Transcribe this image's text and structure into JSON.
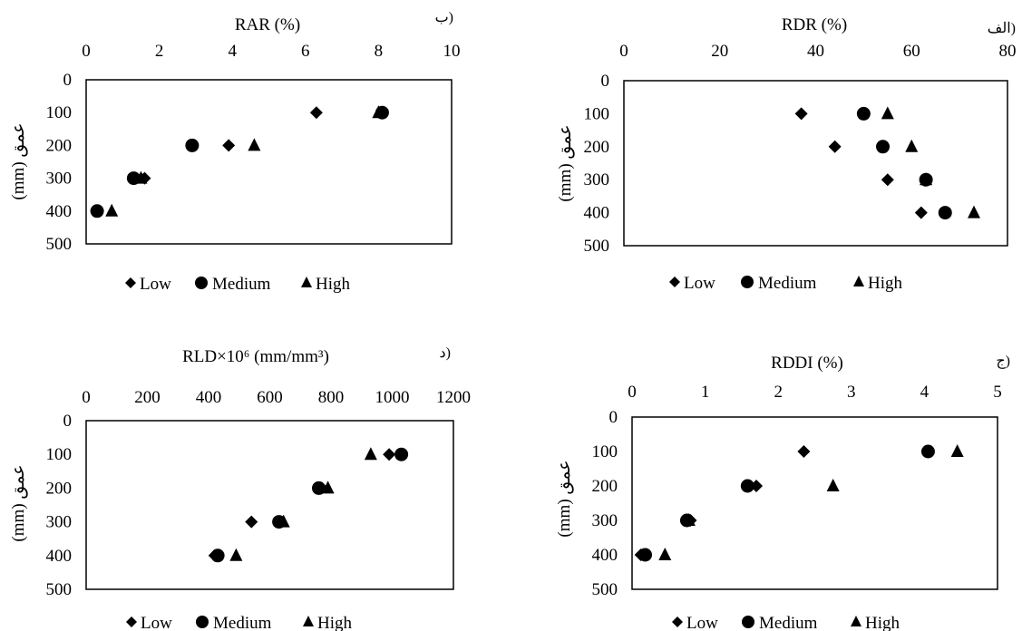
{
  "marker_color": "#000000",
  "legend_items": [
    {
      "label": "Low",
      "marker": "diamond"
    },
    {
      "label": "Medium",
      "marker": "circle"
    },
    {
      "label": "High",
      "marker": "triangle"
    }
  ],
  "chart_data": [
    {
      "id": "rdr",
      "type": "scatter",
      "panel_letter": "الف)",
      "title": "RDR (%)",
      "ylabel": "(mm) عمق",
      "xlim": [
        0,
        80
      ],
      "xticks": [
        0,
        20,
        40,
        60,
        80
      ],
      "ylim": [
        0,
        500
      ],
      "yticks": [
        0,
        100,
        200,
        300,
        400,
        500
      ],
      "y_inverted": true,
      "x_axis_position": "top",
      "legend_position": "bottom",
      "grid": false,
      "series": [
        {
          "name": "Low",
          "marker": "diamond",
          "points": [
            [
              37,
              100
            ],
            [
              44,
              200
            ],
            [
              55,
              300
            ],
            [
              62,
              400
            ]
          ]
        },
        {
          "name": "Medium",
          "marker": "circle",
          "points": [
            [
              50,
              100
            ],
            [
              54,
              200
            ],
            [
              63,
              300
            ],
            [
              67,
              400
            ]
          ]
        },
        {
          "name": "High",
          "marker": "triangle",
          "points": [
            [
              55,
              100
            ],
            [
              60,
              200
            ],
            [
              63,
              300
            ],
            [
              73,
              400
            ]
          ]
        }
      ]
    },
    {
      "id": "rar",
      "type": "scatter",
      "panel_letter": "ب)",
      "title": "RAR (%)",
      "ylabel": "(mm) عمق",
      "xlim": [
        0,
        10
      ],
      "xticks": [
        0,
        2,
        4,
        6,
        8,
        10
      ],
      "ylim": [
        0,
        500
      ],
      "yticks": [
        0,
        100,
        200,
        300,
        400,
        500
      ],
      "y_inverted": true,
      "x_axis_position": "top",
      "legend_position": "bottom",
      "grid": false,
      "series": [
        {
          "name": "Low",
          "marker": "diamond",
          "points": [
            [
              6.3,
              100
            ],
            [
              3.9,
              200
            ],
            [
              1.6,
              300
            ],
            [
              0.3,
              400
            ]
          ]
        },
        {
          "name": "Medium",
          "marker": "circle",
          "points": [
            [
              8.1,
              100
            ],
            [
              2.9,
              200
            ],
            [
              1.3,
              300
            ],
            [
              0.3,
              400
            ]
          ]
        },
        {
          "name": "High",
          "marker": "triangle",
          "points": [
            [
              8.0,
              100
            ],
            [
              4.6,
              200
            ],
            [
              1.5,
              300
            ],
            [
              0.7,
              400
            ]
          ]
        }
      ]
    },
    {
      "id": "rddi",
      "type": "scatter",
      "panel_letter": "ج)",
      "title": "RDDI (%)",
      "ylabel": "(mm) عمق",
      "xlim": [
        0,
        5
      ],
      "xticks": [
        0,
        1,
        2,
        3,
        4,
        5
      ],
      "ylim": [
        0,
        500
      ],
      "yticks": [
        0,
        100,
        200,
        300,
        400,
        500
      ],
      "y_inverted": true,
      "x_axis_position": "top",
      "legend_position": "bottom",
      "grid": false,
      "series": [
        {
          "name": "Low",
          "marker": "diamond",
          "points": [
            [
              2.35,
              100
            ],
            [
              1.7,
              200
            ],
            [
              0.8,
              300
            ],
            [
              0.12,
              400
            ]
          ]
        },
        {
          "name": "Medium",
          "marker": "circle",
          "points": [
            [
              4.05,
              100
            ],
            [
              1.58,
              200
            ],
            [
              0.75,
              300
            ],
            [
              0.18,
              400
            ]
          ]
        },
        {
          "name": "High",
          "marker": "triangle",
          "points": [
            [
              4.45,
              100
            ],
            [
              2.75,
              200
            ],
            [
              0.78,
              300
            ],
            [
              0.45,
              400
            ]
          ]
        }
      ]
    },
    {
      "id": "rld",
      "type": "scatter",
      "panel_letter": "د)",
      "title": "RLD×10⁶ (mm/mm³)",
      "ylabel": "(mm) عمق",
      "xlim": [
        0,
        1200
      ],
      "xticks": [
        0,
        200,
        400,
        600,
        800,
        1000,
        1200
      ],
      "ylim": [
        0,
        500
      ],
      "yticks": [
        0,
        100,
        200,
        300,
        400,
        500
      ],
      "y_inverted": true,
      "x_axis_position": "top",
      "legend_position": "bottom",
      "grid": false,
      "series": [
        {
          "name": "Low",
          "marker": "diamond",
          "points": [
            [
              990,
              100
            ],
            [
              770,
              200
            ],
            [
              540,
              300
            ],
            [
              420,
              400
            ]
          ]
        },
        {
          "name": "Medium",
          "marker": "circle",
          "points": [
            [
              1030,
              100
            ],
            [
              760,
              200
            ],
            [
              630,
              300
            ],
            [
              430,
              400
            ]
          ]
        },
        {
          "name": "High",
          "marker": "triangle",
          "points": [
            [
              930,
              100
            ],
            [
              790,
              200
            ],
            [
              645,
              300
            ],
            [
              490,
              400
            ]
          ]
        }
      ]
    }
  ]
}
